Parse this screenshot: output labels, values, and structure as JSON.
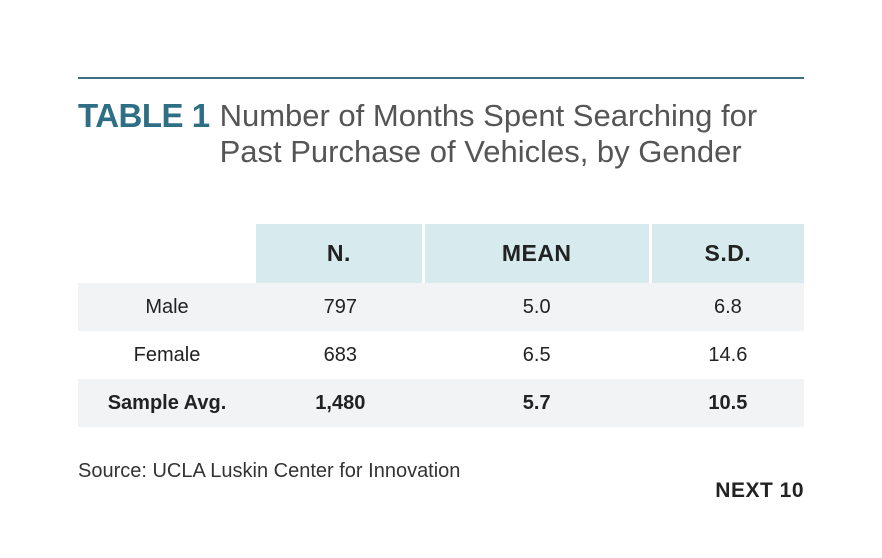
{
  "table": {
    "label": "TABLE 1",
    "title": "Number of Months Spent Searching for Past Purchase of Vehicles, by Gender",
    "columns": [
      "N.",
      "MEAN",
      "S.D."
    ],
    "rows": [
      {
        "label": "Male",
        "values": [
          "797",
          "5.0",
          "6.8"
        ]
      },
      {
        "label": "Female",
        "values": [
          "683",
          "6.5",
          "14.6"
        ]
      },
      {
        "label": "Sample Avg.",
        "values": [
          "1,480",
          "5.7",
          "10.5"
        ]
      }
    ]
  },
  "colors": {
    "accent": "#2f6f86",
    "header_fill": "#d7ebef",
    "row_fill": "#f1f3f4"
  },
  "source": "Source: UCLA Luskin Center for Innovation",
  "brand": "NEXT 10"
}
